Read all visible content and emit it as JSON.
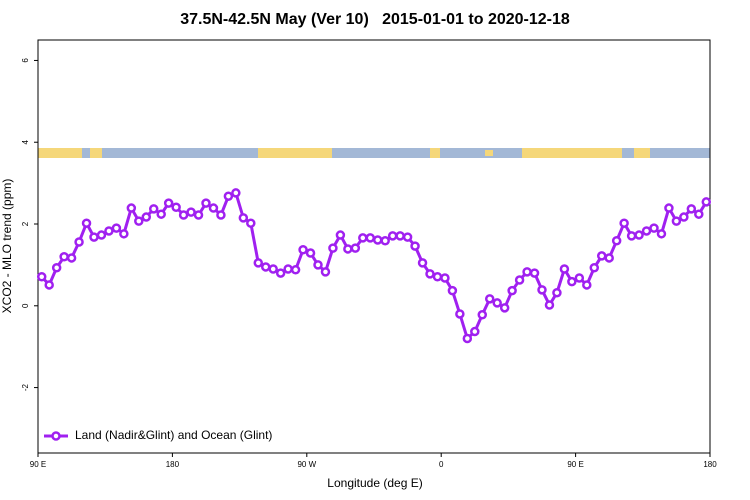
{
  "chart_data": {
    "type": "line",
    "title": "37.5N-42.5N May (Ver 10)   2015-01-01 to 2020-12-18",
    "x_label": "Longitude (deg E)",
    "y_label": "XCO2 - MLO trend (ppm)",
    "xlim": [
      90,
      540
    ],
    "ylim": [
      -3.6,
      6.5
    ],
    "xticks": [
      {
        "value": 90,
        "label": "90 E"
      },
      180,
      {
        "value": 270,
        "label": "90 W"
      },
      {
        "value": 360,
        "label": "0"
      },
      {
        "value": 450,
        "label": "90 E"
      },
      {
        "value": 540,
        "label": "180"
      }
    ],
    "yticks": [
      -2,
      0,
      2,
      4,
      6
    ],
    "legend": "bottom-left",
    "x": [
      92.5,
      97.5,
      102.5,
      107.5,
      112.5,
      117.5,
      122.5,
      127.5,
      132.5,
      137.5,
      142.5,
      147.5,
      152.5,
      157.5,
      162.5,
      167.5,
      172.5,
      177.5,
      182.5,
      187.5,
      192.5,
      197.5,
      202.5,
      207.5,
      212.5,
      217.5,
      222.5,
      227.5,
      232.5,
      237.5,
      242.5,
      247.5,
      252.5,
      257.5,
      262.5,
      267.5,
      272.5,
      277.5,
      282.5,
      287.5,
      292.5,
      297.5,
      302.5,
      307.5,
      312.5,
      317.5,
      322.5,
      327.5,
      332.5,
      337.5,
      342.5,
      347.5,
      352.5,
      357.5,
      362.5,
      367.5,
      372.5,
      377.5,
      382.5,
      387.5,
      392.5,
      397.5,
      402.5,
      407.5,
      412.5,
      417.5,
      422.5,
      427.5,
      432.5,
      437.5,
      442.5,
      447.5,
      452.5,
      457.5,
      462.5,
      467.5,
      472.5,
      477.5,
      482.5,
      487.5,
      492.5,
      497.5,
      502.5,
      507.5,
      512.5,
      517.5,
      522.5,
      527.5,
      532.5,
      537.5
    ],
    "series": [
      {
        "name": "Land (Nadir&Glint) and Ocean (Glint)",
        "color": "#a020f0",
        "values": [
          0.71,
          0.51,
          0.93,
          1.2,
          1.17,
          1.56,
          2.02,
          1.68,
          1.73,
          1.83,
          1.9,
          1.76,
          2.39,
          2.07,
          2.17,
          2.37,
          2.24,
          2.51,
          2.41,
          2.22,
          2.29,
          2.22,
          2.51,
          2.39,
          2.22,
          2.68,
          2.76,
          2.15,
          2.02,
          1.05,
          0.95,
          0.9,
          0.8,
          0.9,
          0.88,
          1.37,
          1.29,
          1.0,
          0.83,
          1.41,
          1.73,
          1.39,
          1.41,
          1.66,
          1.66,
          1.61,
          1.59,
          1.71,
          1.71,
          1.68,
          1.46,
          1.05,
          0.78,
          0.71,
          0.68,
          0.37,
          -0.2,
          -0.8,
          -0.63,
          -0.22,
          0.17,
          0.07,
          -0.05,
          0.37,
          0.63,
          0.83,
          0.8,
          0.39,
          0.02,
          0.32,
          0.9,
          0.59,
          0.68,
          0.51,
          0.93,
          1.22,
          1.17,
          1.59,
          2.02,
          1.71,
          1.73,
          1.83,
          1.9,
          1.76,
          2.39,
          2.07,
          2.17,
          2.37,
          2.24,
          2.54
        ]
      }
    ]
  }
}
